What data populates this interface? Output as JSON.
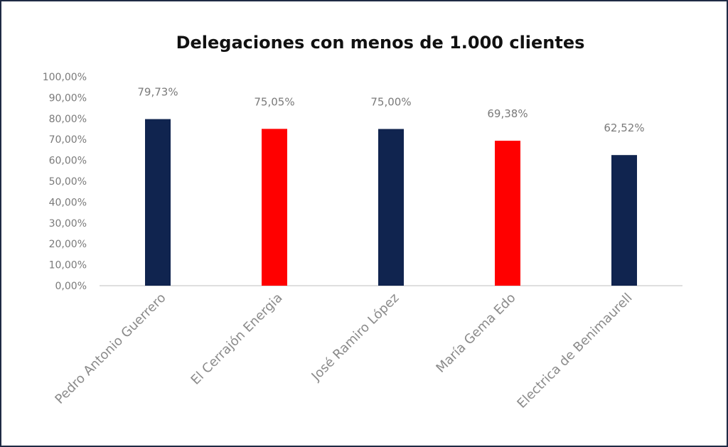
{
  "chart_data": {
    "type": "bar",
    "title": "Delegaciones con menos de 1.000 clientes",
    "xlabel": "",
    "ylabel": "",
    "ylim": [
      0,
      100
    ],
    "ytick_labels": [
      "0,00%",
      "10,00%",
      "20,00%",
      "30,00%",
      "40,00%",
      "50,00%",
      "60,00%",
      "70,00%",
      "80,00%",
      "90,00%",
      "100,00%"
    ],
    "categories": [
      "Pedro Antonio Guerrero",
      "El Cerrajón Energia",
      "José Ramiro López",
      "María Gema Edo",
      "Electrica de Benimaurell"
    ],
    "values": [
      79.73,
      75.05,
      75.0,
      69.38,
      62.52
    ],
    "data_labels": [
      "79,73%",
      "75,05%",
      "75,00%",
      "69,38%",
      "62,52%"
    ],
    "bar_colors": [
      "#10244f",
      "#ff0000",
      "#10244f",
      "#ff0000",
      "#10244f"
    ],
    "grid": false,
    "legend": "none"
  },
  "colors": {
    "axis": "#bfbfbf",
    "frame": "#1f2a44"
  }
}
